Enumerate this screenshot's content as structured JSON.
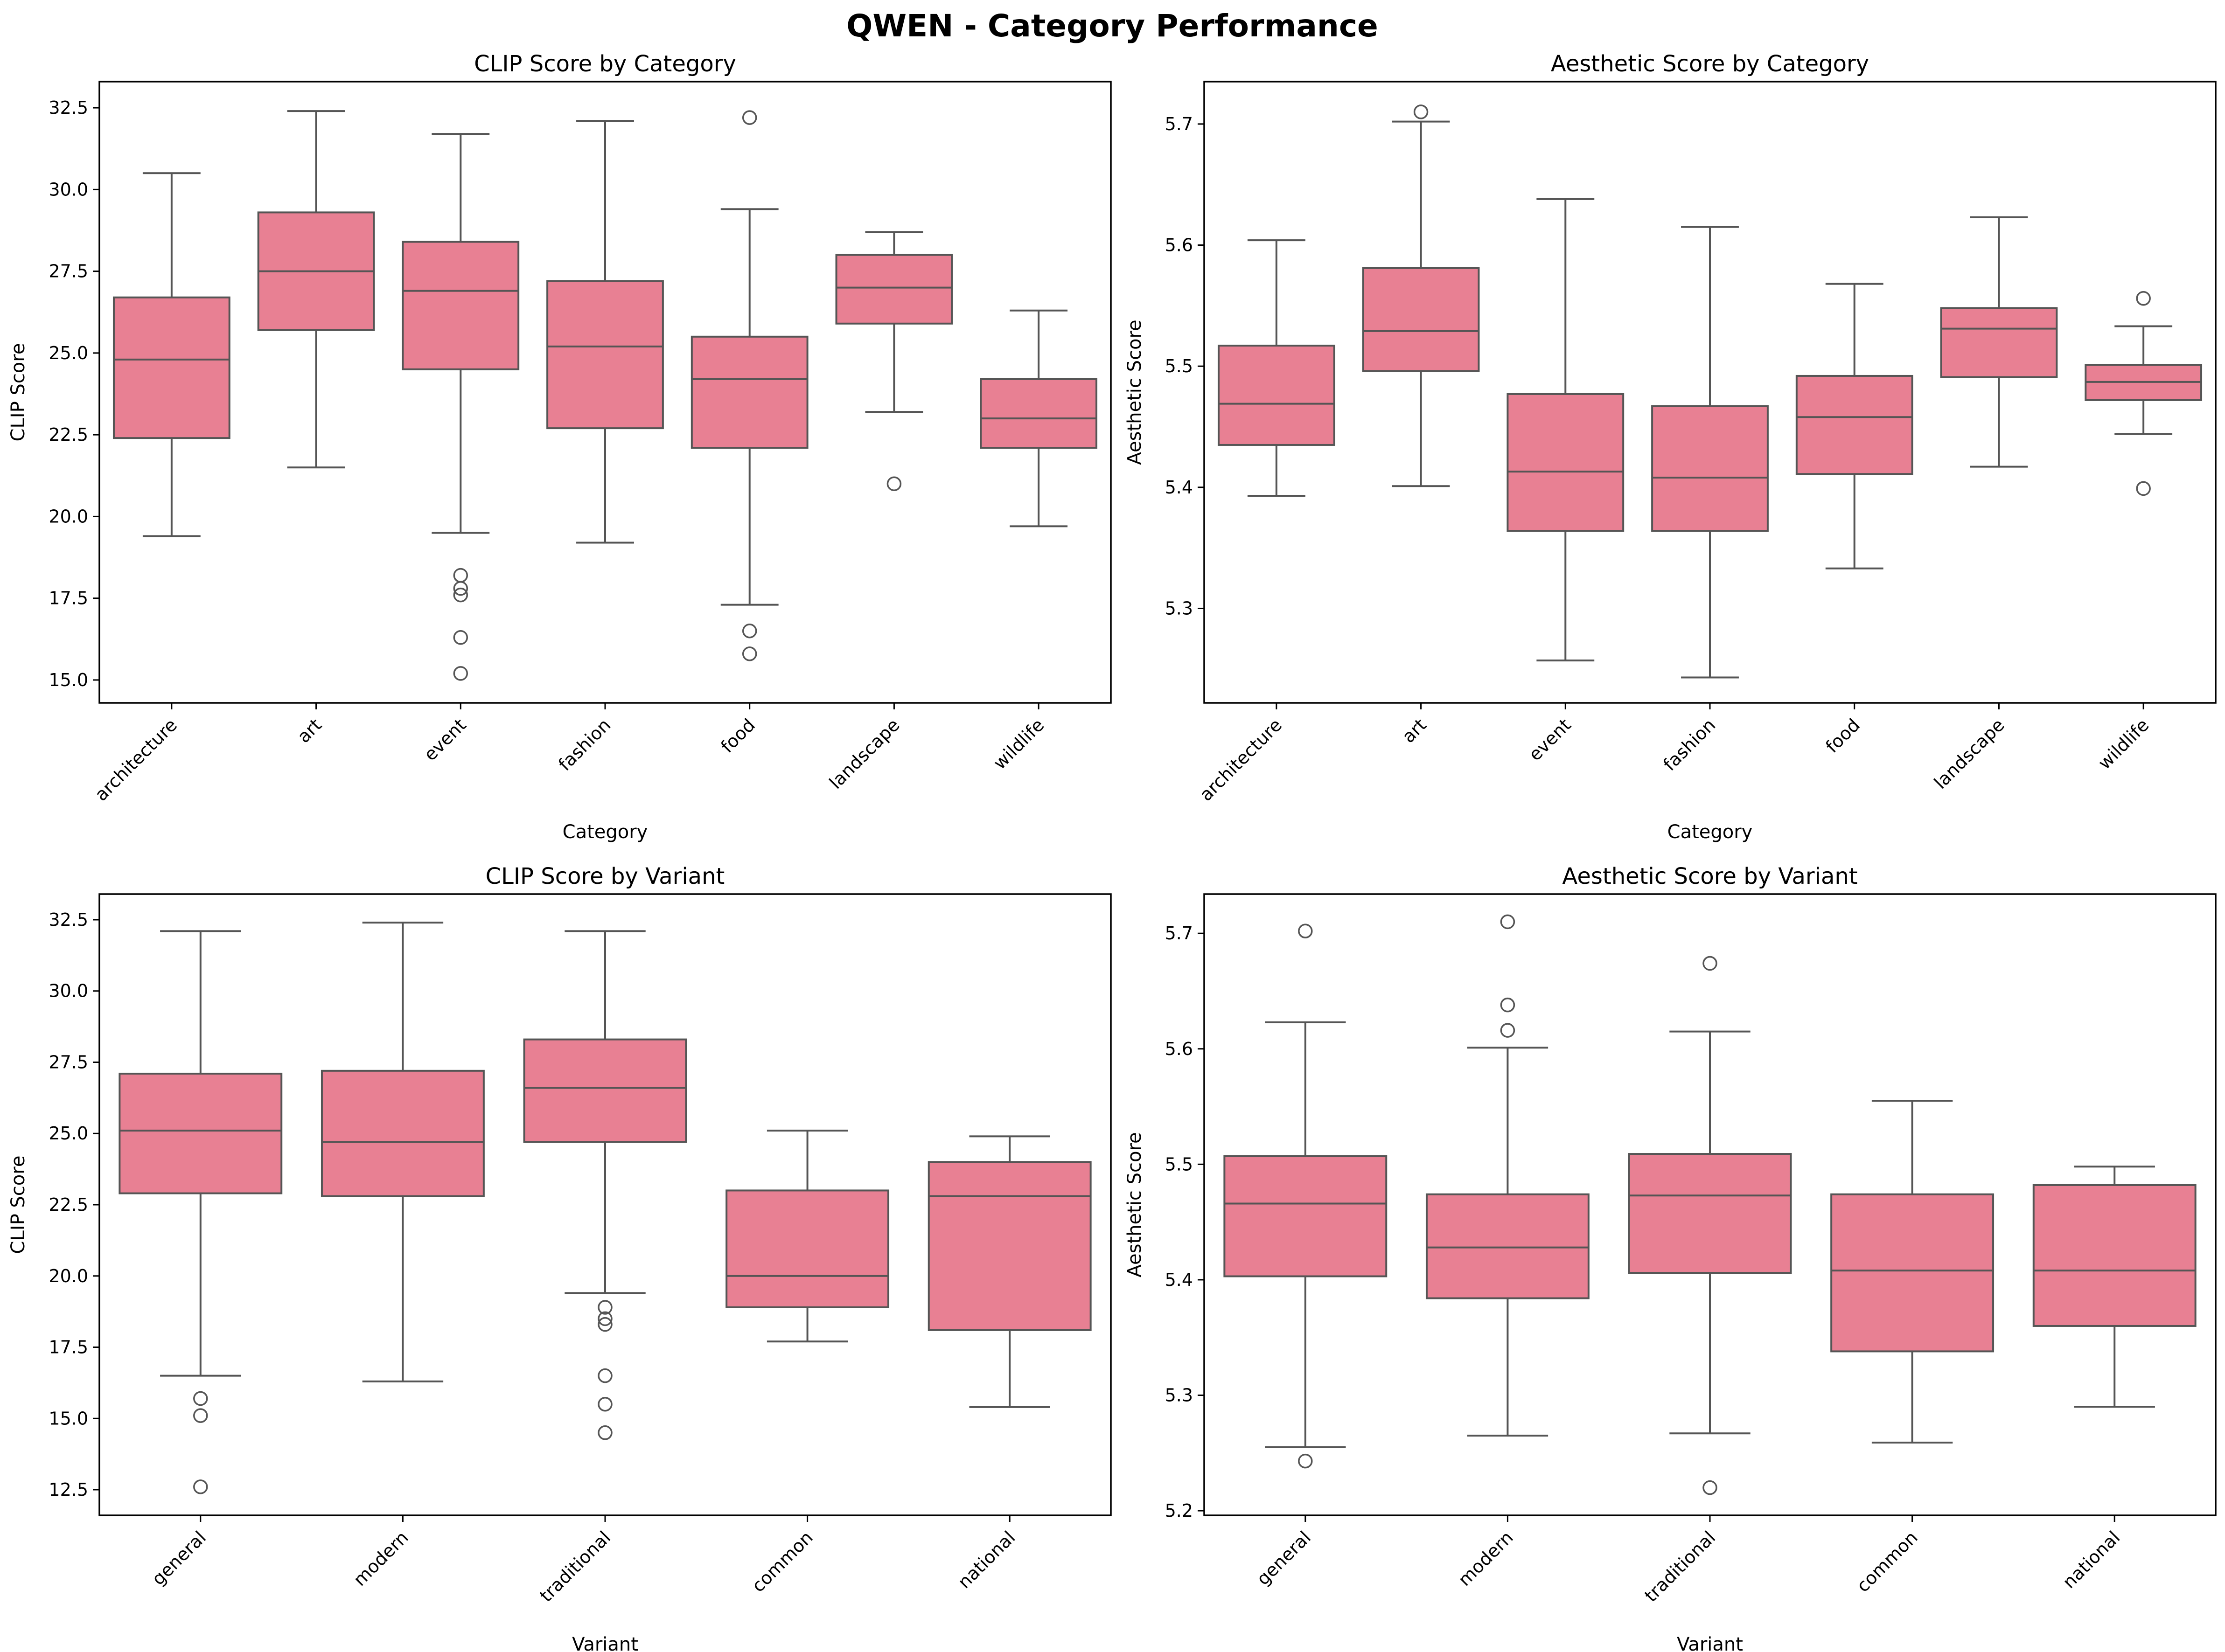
{
  "suptitle": "QWEN - Category Performance",
  "colors": {
    "box": "#e88093",
    "line": "#555555",
    "axis": "#000000"
  },
  "chart_data": [
    {
      "type": "box",
      "title": "CLIP Score by Category",
      "xlabel": "Category",
      "ylabel": "CLIP Score",
      "ylim": [
        14.3,
        33.3
      ],
      "yticks": [
        15.0,
        17.5,
        20.0,
        22.5,
        25.0,
        27.5,
        30.0,
        32.5
      ],
      "ytick_labels": [
        "15.0",
        "17.5",
        "20.0",
        "22.5",
        "25.0",
        "27.5",
        "30.0",
        "32.5"
      ],
      "grid": false,
      "categories": [
        "architecture",
        "art",
        "event",
        "fashion",
        "food",
        "landscape",
        "wildlife"
      ],
      "boxes": [
        {
          "whislo": 19.4,
          "q1": 22.4,
          "med": 24.8,
          "q3": 26.7,
          "whishi": 30.5,
          "fliers": []
        },
        {
          "whislo": 21.5,
          "q1": 25.7,
          "med": 27.5,
          "q3": 29.3,
          "whishi": 32.4,
          "fliers": []
        },
        {
          "whislo": 19.5,
          "q1": 24.5,
          "med": 26.9,
          "q3": 28.4,
          "whishi": 31.7,
          "fliers": [
            18.2,
            17.8,
            17.6,
            16.3,
            15.2
          ]
        },
        {
          "whislo": 19.2,
          "q1": 22.7,
          "med": 25.2,
          "q3": 27.2,
          "whishi": 32.1,
          "fliers": []
        },
        {
          "whislo": 17.3,
          "q1": 22.1,
          "med": 24.2,
          "q3": 25.5,
          "whishi": 29.4,
          "fliers": [
            32.2,
            16.5,
            15.8
          ]
        },
        {
          "whislo": 23.2,
          "q1": 25.9,
          "med": 27.0,
          "q3": 28.0,
          "whishi": 28.7,
          "fliers": [
            21.0
          ]
        },
        {
          "whislo": 19.7,
          "q1": 22.1,
          "med": 23.0,
          "q3": 24.2,
          "whishi": 26.3,
          "fliers": []
        }
      ]
    },
    {
      "type": "box",
      "title": "Aesthetic Score by Category",
      "xlabel": "Category",
      "ylabel": "Aesthetic Score",
      "ylim": [
        5.222,
        5.735
      ],
      "yticks": [
        5.3,
        5.4,
        5.5,
        5.6,
        5.7
      ],
      "ytick_labels": [
        "5.3",
        "5.4",
        "5.5",
        "5.6",
        "5.7"
      ],
      "grid": false,
      "categories": [
        "architecture",
        "art",
        "event",
        "fashion",
        "food",
        "landscape",
        "wildlife"
      ],
      "boxes": [
        {
          "whislo": 5.393,
          "q1": 5.435,
          "med": 5.469,
          "q3": 5.517,
          "whishi": 5.604,
          "fliers": []
        },
        {
          "whislo": 5.401,
          "q1": 5.496,
          "med": 5.529,
          "q3": 5.581,
          "whishi": 5.702,
          "fliers": [
            5.71
          ]
        },
        {
          "whislo": 5.257,
          "q1": 5.364,
          "med": 5.413,
          "q3": 5.477,
          "whishi": 5.638,
          "fliers": []
        },
        {
          "whislo": 5.243,
          "q1": 5.364,
          "med": 5.408,
          "q3": 5.467,
          "whishi": 5.615,
          "fliers": []
        },
        {
          "whislo": 5.333,
          "q1": 5.411,
          "med": 5.458,
          "q3": 5.492,
          "whishi": 5.568,
          "fliers": []
        },
        {
          "whislo": 5.417,
          "q1": 5.491,
          "med": 5.531,
          "q3": 5.548,
          "whishi": 5.623,
          "fliers": []
        },
        {
          "whislo": 5.444,
          "q1": 5.472,
          "med": 5.487,
          "q3": 5.501,
          "whishi": 5.533,
          "fliers": [
            5.556,
            5.399
          ]
        }
      ]
    },
    {
      "type": "box",
      "title": "CLIP Score by Variant",
      "xlabel": "Variant",
      "ylabel": "CLIP Score",
      "ylim": [
        11.6,
        33.4
      ],
      "yticks": [
        12.5,
        15.0,
        17.5,
        20.0,
        22.5,
        25.0,
        27.5,
        30.0,
        32.5
      ],
      "ytick_labels": [
        "12.5",
        "15.0",
        "17.5",
        "20.0",
        "22.5",
        "25.0",
        "27.5",
        "30.0",
        "32.5"
      ],
      "grid": false,
      "categories": [
        "general",
        "modern",
        "traditional",
        "common",
        "national"
      ],
      "boxes": [
        {
          "whislo": 16.5,
          "q1": 22.9,
          "med": 25.1,
          "q3": 27.1,
          "whishi": 32.1,
          "fliers": [
            15.7,
            15.1,
            12.6
          ]
        },
        {
          "whislo": 16.3,
          "q1": 22.8,
          "med": 24.7,
          "q3": 27.2,
          "whishi": 32.4,
          "fliers": []
        },
        {
          "whislo": 19.4,
          "q1": 24.7,
          "med": 26.6,
          "q3": 28.3,
          "whishi": 32.1,
          "fliers": [
            18.9,
            18.5,
            18.3,
            16.5,
            15.5,
            14.5
          ]
        },
        {
          "whislo": 17.7,
          "q1": 18.9,
          "med": 20.0,
          "q3": 23.0,
          "whishi": 25.1,
          "fliers": []
        },
        {
          "whislo": 15.4,
          "q1": 18.1,
          "med": 22.8,
          "q3": 24.0,
          "whishi": 24.9,
          "fliers": []
        }
      ]
    },
    {
      "type": "box",
      "title": "Aesthetic Score by Variant",
      "xlabel": "Variant",
      "ylabel": "Aesthetic Score",
      "ylim": [
        5.196,
        5.734
      ],
      "yticks": [
        5.2,
        5.3,
        5.4,
        5.5,
        5.6,
        5.7
      ],
      "ytick_labels": [
        "5.2",
        "5.3",
        "5.4",
        "5.5",
        "5.6",
        "5.7"
      ],
      "grid": false,
      "categories": [
        "general",
        "modern",
        "traditional",
        "common",
        "national"
      ],
      "boxes": [
        {
          "whislo": 5.255,
          "q1": 5.403,
          "med": 5.466,
          "q3": 5.507,
          "whishi": 5.623,
          "fliers": [
            5.702,
            5.243
          ]
        },
        {
          "whislo": 5.265,
          "q1": 5.384,
          "med": 5.428,
          "q3": 5.474,
          "whishi": 5.601,
          "fliers": [
            5.71,
            5.638,
            5.616
          ]
        },
        {
          "whislo": 5.267,
          "q1": 5.406,
          "med": 5.473,
          "q3": 5.509,
          "whishi": 5.615,
          "fliers": [
            5.674,
            5.22
          ]
        },
        {
          "whislo": 5.259,
          "q1": 5.338,
          "med": 5.408,
          "q3": 5.474,
          "whishi": 5.555,
          "fliers": []
        },
        {
          "whislo": 5.29,
          "q1": 5.36,
          "med": 5.408,
          "q3": 5.482,
          "whishi": 5.498,
          "fliers": []
        }
      ]
    }
  ]
}
